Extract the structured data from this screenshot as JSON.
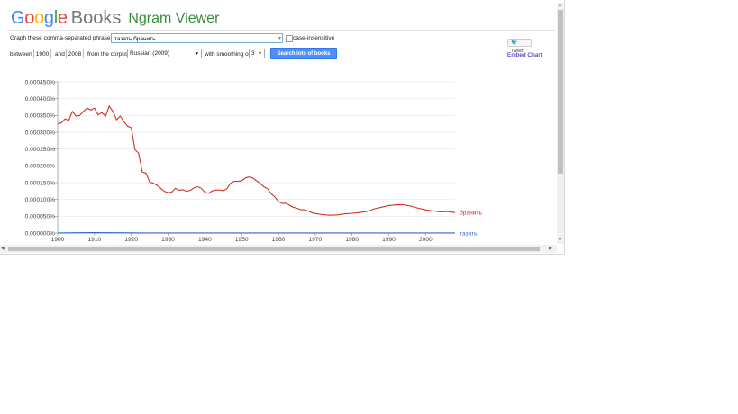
{
  "header": {
    "logo_text": "Google",
    "books_text": "Books",
    "app_title": "Ngram Viewer"
  },
  "form": {
    "phrases_label": "Graph these comma-separated phrases:",
    "phrases_value": "тазать,бранить",
    "case_label": "case-insensitive",
    "between_label": "between",
    "start_year": "1900",
    "and_label": "and",
    "end_year": "2008",
    "corpus_label": "from the corpus",
    "corpus_value": "Russian (2009)",
    "smoothing_label": "with smoothing of",
    "smoothing_value": "3",
    "search_button": "Search lots of books"
  },
  "side": {
    "tweet_label": "Tweet",
    "embed_label": "Embed Chart"
  },
  "colors": {
    "series_red": "#cc3322",
    "series_blue": "#3366cc",
    "button": "#4d90fe",
    "logo_blue": "#4285f4",
    "logo_red": "#ea4335",
    "logo_yellow": "#fbbc05",
    "logo_green": "#34a853"
  },
  "chart_data": {
    "type": "line",
    "title": "",
    "xlabel": "",
    "ylabel": "",
    "xlim": [
      1900,
      2008
    ],
    "ylim": [
      0,
      0.00045
    ],
    "y_ticks": [
      "0.000000%",
      "0.000050%",
      "0.000100%",
      "0.000150%",
      "0.000200%",
      "0.000250%",
      "0.000300%",
      "0.000350%",
      "0.000400%",
      "0.000450%"
    ],
    "x_ticks": [
      "1900",
      "1910",
      "1920",
      "1930",
      "1940",
      "1950",
      "1960",
      "1970",
      "1980",
      "1990",
      "2000"
    ],
    "x_tick_values": [
      1900,
      1910,
      1920,
      1930,
      1940,
      1950,
      1960,
      1970,
      1980,
      1990,
      2000
    ],
    "series": [
      {
        "name": "бранить",
        "color": "#cc3322",
        "x": [
          1900,
          1901,
          1902,
          1903,
          1904,
          1905,
          1906,
          1907,
          1908,
          1909,
          1910,
          1911,
          1912,
          1913,
          1914,
          1915,
          1916,
          1917,
          1918,
          1919,
          1920,
          1921,
          1922,
          1923,
          1924,
          1925,
          1926,
          1927,
          1928,
          1929,
          1930,
          1931,
          1932,
          1933,
          1934,
          1935,
          1936,
          1937,
          1938,
          1939,
          1940,
          1941,
          1942,
          1943,
          1944,
          1945,
          1946,
          1947,
          1948,
          1949,
          1950,
          1951,
          1952,
          1953,
          1954,
          1955,
          1956,
          1957,
          1958,
          1959,
          1960,
          1961,
          1962,
          1963,
          1964,
          1965,
          1966,
          1967,
          1968,
          1969,
          1970,
          1972,
          1974,
          1976,
          1978,
          1980,
          1982,
          1984,
          1986,
          1988,
          1990,
          1992,
          1994,
          1996,
          1998,
          2000,
          2002,
          2004,
          2006,
          2008
        ],
        "values": [
          0.000325,
          0.000328,
          0.00034,
          0.000335,
          0.000362,
          0.000348,
          0.00035,
          0.000362,
          0.000372,
          0.000366,
          0.000372,
          0.000352,
          0.000358,
          0.000348,
          0.000378,
          0.000362,
          0.000337,
          0.000348,
          0.000332,
          0.000318,
          0.000313,
          0.000248,
          0.000238,
          0.000182,
          0.000178,
          0.000152,
          0.000148,
          0.000142,
          0.000133,
          0.000124,
          0.00012,
          0.000122,
          0.000133,
          0.000127,
          0.000129,
          0.000124,
          0.000127,
          0.000134,
          0.000138,
          0.000133,
          0.000122,
          0.000118,
          0.000125,
          0.000128,
          0.000128,
          0.000126,
          0.000132,
          0.000148,
          0.000154,
          0.000154,
          0.000155,
          0.000164,
          0.000167,
          0.000164,
          0.000156,
          0.000148,
          0.000138,
          0.000132,
          0.000117,
          0.000108,
          9.4e-05,
          8.8e-05,
          8.9e-05,
          8.3e-05,
          7.7e-05,
          7.4e-05,
          7e-05,
          6.9e-05,
          6.6e-05,
          6.1e-05,
          5.8e-05,
          5.5e-05,
          5.3e-05,
          5.4e-05,
          5.7e-05,
          5.9e-05,
          6.1e-05,
          6.4e-05,
          7.2e-05,
          7.7e-05,
          8.2e-05,
          8.4e-05,
          8.4e-05,
          8e-05,
          7.4e-05,
          6.9e-05,
          6.6e-05,
          6.3e-05,
          6.4e-05,
          6.1e-05
        ]
      },
      {
        "name": "тазать",
        "color": "#3366cc",
        "x": [
          1900,
          1905,
          1910,
          1915,
          1920,
          1925,
          1930,
          1935,
          1940,
          1945,
          1950,
          1955,
          1960,
          1965,
          1970,
          1975,
          1980,
          1985,
          1990,
          1995,
          2000,
          2008
        ],
        "values": [
          4e-07,
          8e-07,
          1.2e-06,
          9e-07,
          6e-07,
          3e-07,
          3e-07,
          2e-07,
          3e-07,
          2e-07,
          2e-07,
          2e-07,
          2e-07,
          2e-07,
          2e-07,
          2e-07,
          2e-07,
          2e-07,
          2e-07,
          2e-07,
          2e-07,
          2e-07
        ]
      }
    ]
  }
}
